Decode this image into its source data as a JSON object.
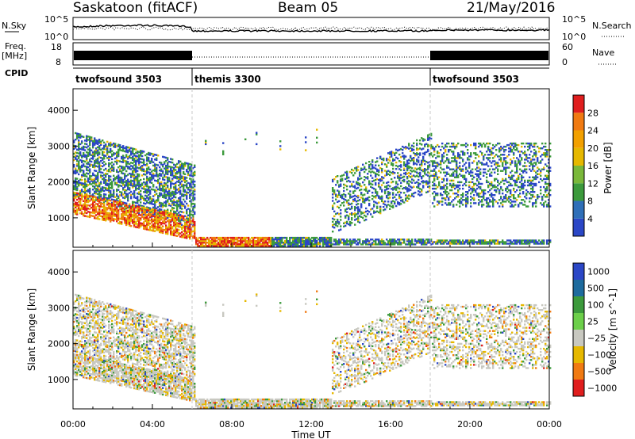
{
  "header": {
    "radar": "Saskatoon (fitACF)",
    "beam": "Beam 05",
    "date": "21/May/2016"
  },
  "colors": {
    "scan_blue": "#2b47c6",
    "scan_green": "#3c9a3c",
    "scan_yellow": "#e6b800",
    "scan_orange": "#f07a12",
    "scan_red": "#e01e1e",
    "ground_grey": "#c8c8c0",
    "divider_grey": "#c8c8c8"
  },
  "panels": {
    "nsky": {
      "left_label": "N.Sky",
      "right_label": "N.Search",
      "y_ticks_left": [
        "10^5",
        "10^0"
      ],
      "y_ticks_right": [
        "10^5",
        "10^0"
      ]
    },
    "freq": {
      "left_label_1": "Freq.",
      "left_label_2": "[MHz]",
      "right_label": "Nave",
      "y_ticks_left": [
        "18",
        "8"
      ],
      "y_ticks_right": [
        "60",
        "0"
      ]
    },
    "cpid": {
      "label": "CPID",
      "segments": [
        {
          "name": "twofsound 3503",
          "start": 0,
          "end": 6
        },
        {
          "name": "themis 3300",
          "start": 6,
          "end": 18
        },
        {
          "name": "twofsound 3503",
          "start": 18,
          "end": 24
        }
      ]
    }
  },
  "chart_data": [
    {
      "type": "heatmap",
      "title": "",
      "xlabel": "Time UT",
      "ylabel": "Slant Range [km]",
      "xlim": [
        0,
        24
      ],
      "ylim": [
        180,
        4600
      ],
      "x_tick_labels": [
        "00:00",
        "04:00",
        "08:00",
        "12:00",
        "16:00",
        "20:00",
        "00:00"
      ],
      "y_ticks": [
        1000,
        2000,
        3000,
        4000
      ],
      "colorbar": {
        "label": "Power [dB]",
        "range": [
          0,
          32
        ],
        "ticks": [
          4,
          8,
          12,
          16,
          20,
          24,
          28
        ]
      },
      "segment_boundaries": [
        6,
        18
      ]
    },
    {
      "type": "heatmap",
      "title": "",
      "xlabel": "Time UT",
      "ylabel": "Slant Range [km]",
      "xlim": [
        0,
        24
      ],
      "ylim": [
        180,
        4600
      ],
      "x_tick_labels": [
        "00:00",
        "04:00",
        "08:00",
        "12:00",
        "16:00",
        "20:00",
        "00:00"
      ],
      "y_ticks": [
        1000,
        2000,
        3000,
        4000
      ],
      "colorbar": {
        "label": "Velocity [m s^-1]",
        "tick_labels": [
          "1000",
          "500",
          "100",
          "25",
          "−25",
          "−100",
          "−500",
          "−1000"
        ]
      },
      "segment_boundaries": [
        6,
        18
      ]
    }
  ]
}
